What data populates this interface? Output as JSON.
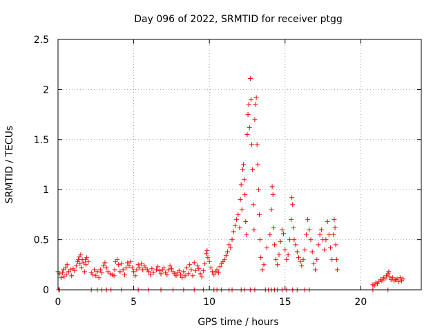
{
  "chart_data": {
    "type": "scatter",
    "title": "Day 096 of 2022, SRMTID for receiver ptgg",
    "xlabel": "GPS time / hours",
    "ylabel": "SRMTID / TECUs",
    "xlim": [
      0,
      24
    ],
    "ylim": [
      0,
      2.5
    ],
    "xticks": [
      0,
      5,
      10,
      15,
      20
    ],
    "yticks": [
      0,
      0.5,
      1,
      1.5,
      2,
      2.5
    ],
    "ytick_labels": [
      "0",
      "0.5",
      "1",
      "1.5",
      "2",
      "2.5"
    ],
    "grid": true,
    "marker": "+",
    "series": [
      {
        "name": "SRMTID",
        "color": "#ff0000",
        "points": [
          [
            0.0,
            0.18
          ],
          [
            0.1,
            0.16
          ],
          [
            0.2,
            0.12
          ],
          [
            0.3,
            0.17
          ],
          [
            0.35,
            0.2
          ],
          [
            0.4,
            0.13
          ],
          [
            0.5,
            0.22
          ],
          [
            0.55,
            0.15
          ],
          [
            0.6,
            0.25
          ],
          [
            0.7,
            0.18
          ],
          [
            0.8,
            0.2
          ],
          [
            0.9,
            0.14
          ],
          [
            1.0,
            0.21
          ],
          [
            1.1,
            0.19
          ],
          [
            1.2,
            0.24
          ],
          [
            1.3,
            0.28
          ],
          [
            1.35,
            0.3
          ],
          [
            1.4,
            0.33
          ],
          [
            1.45,
            0.26
          ],
          [
            1.5,
            0.35
          ],
          [
            1.55,
            0.22
          ],
          [
            1.6,
            0.3
          ],
          [
            1.7,
            0.27
          ],
          [
            1.75,
            0.18
          ],
          [
            1.8,
            0.3
          ],
          [
            1.85,
            0.25
          ],
          [
            1.9,
            0.32
          ],
          [
            2.0,
            0.28
          ],
          [
            2.2,
            0.17
          ],
          [
            2.3,
            0.15
          ],
          [
            2.4,
            0.2
          ],
          [
            2.5,
            0.14
          ],
          [
            2.6,
            0.18
          ],
          [
            2.7,
            0.12
          ],
          [
            2.8,
            0.2
          ],
          [
            2.9,
            0.17
          ],
          [
            3.0,
            0.24
          ],
          [
            3.1,
            0.27
          ],
          [
            3.2,
            0.22
          ],
          [
            3.3,
            0.18
          ],
          [
            3.45,
            0.16
          ],
          [
            3.6,
            0.15
          ],
          [
            3.7,
            0.14
          ],
          [
            3.75,
            0.2
          ],
          [
            3.8,
            0.28
          ],
          [
            3.9,
            0.3
          ],
          [
            4.0,
            0.25
          ],
          [
            4.1,
            0.18
          ],
          [
            4.2,
            0.26
          ],
          [
            4.3,
            0.2
          ],
          [
            4.4,
            0.15
          ],
          [
            4.5,
            0.22
          ],
          [
            4.6,
            0.27
          ],
          [
            4.7,
            0.24
          ],
          [
            4.8,
            0.28
          ],
          [
            4.9,
            0.22
          ],
          [
            5.0,
            0.18
          ],
          [
            5.1,
            0.14
          ],
          [
            5.2,
            0.2
          ],
          [
            5.3,
            0.25
          ],
          [
            5.4,
            0.22
          ],
          [
            5.5,
            0.26
          ],
          [
            5.6,
            0.2
          ],
          [
            5.7,
            0.24
          ],
          [
            5.8,
            0.22
          ],
          [
            5.9,
            0.2
          ],
          [
            6.0,
            0.18
          ],
          [
            6.1,
            0.15
          ],
          [
            6.2,
            0.21
          ],
          [
            6.3,
            0.17
          ],
          [
            6.5,
            0.2
          ],
          [
            6.6,
            0.23
          ],
          [
            6.7,
            0.19
          ],
          [
            6.8,
            0.16
          ],
          [
            6.9,
            0.2
          ],
          [
            7.0,
            0.22
          ],
          [
            7.1,
            0.17
          ],
          [
            7.2,
            0.15
          ],
          [
            7.3,
            0.2
          ],
          [
            7.4,
            0.24
          ],
          [
            7.5,
            0.21
          ],
          [
            7.6,
            0.18
          ],
          [
            7.7,
            0.16
          ],
          [
            7.8,
            0.14
          ],
          [
            7.9,
            0.17
          ],
          [
            8.0,
            0.19
          ],
          [
            8.1,
            0.15
          ],
          [
            8.2,
            0.12
          ],
          [
            8.3,
            0.18
          ],
          [
            8.4,
            0.14
          ],
          [
            8.5,
            0.22
          ],
          [
            8.6,
            0.16
          ],
          [
            8.7,
            0.25
          ],
          [
            8.8,
            0.2
          ],
          [
            8.9,
            0.14
          ],
          [
            9.0,
            0.27
          ],
          [
            9.1,
            0.19
          ],
          [
            9.2,
            0.24
          ],
          [
            9.3,
            0.21
          ],
          [
            9.4,
            0.16
          ],
          [
            9.5,
            0.13
          ],
          [
            9.6,
            0.19
          ],
          [
            9.7,
            0.26
          ],
          [
            9.8,
            0.36
          ],
          [
            9.85,
            0.39
          ],
          [
            9.9,
            0.32
          ],
          [
            10.0,
            0.28
          ],
          [
            10.1,
            0.22
          ],
          [
            10.2,
            0.18
          ],
          [
            10.3,
            0.15
          ],
          [
            10.4,
            0.18
          ],
          [
            10.5,
            0.2
          ],
          [
            10.6,
            0.17
          ],
          [
            10.7,
            0.23
          ],
          [
            10.8,
            0.26
          ],
          [
            10.9,
            0.28
          ],
          [
            11.0,
            0.3
          ],
          [
            11.1,
            0.34
          ],
          [
            11.2,
            0.38
          ],
          [
            11.3,
            0.45
          ],
          [
            11.4,
            0.42
          ],
          [
            11.5,
            0.5
          ],
          [
            11.6,
            0.58
          ],
          [
            11.7,
            0.64
          ],
          [
            11.8,
            0.7
          ],
          [
            11.9,
            0.75
          ],
          [
            12.0,
            0.62
          ],
          [
            12.05,
            0.9
          ],
          [
            12.1,
            1.05
          ],
          [
            12.15,
            0.8
          ],
          [
            12.2,
            1.2
          ],
          [
            12.25,
            1.25
          ],
          [
            12.3,
            1.1
          ],
          [
            12.35,
            0.95
          ],
          [
            12.4,
            0.68
          ],
          [
            12.45,
            0.55
          ],
          [
            12.5,
            1.55
          ],
          [
            12.55,
            1.75
          ],
          [
            12.6,
            1.85
          ],
          [
            12.65,
            1.62
          ],
          [
            12.7,
            2.11
          ],
          [
            12.75,
            1.9
          ],
          [
            12.8,
            1.45
          ],
          [
            12.85,
            1.2
          ],
          [
            12.9,
            0.85
          ],
          [
            12.95,
            0.6
          ],
          [
            13.0,
            1.7
          ],
          [
            13.05,
            1.85
          ],
          [
            13.1,
            1.92
          ],
          [
            13.15,
            1.45
          ],
          [
            13.2,
            1.25
          ],
          [
            13.25,
            1.0
          ],
          [
            13.3,
            0.75
          ],
          [
            13.35,
            0.5
          ],
          [
            13.4,
            0.32
          ],
          [
            13.5,
            0.2
          ],
          [
            13.6,
            0.25
          ],
          [
            13.8,
            0.42
          ],
          [
            14.0,
            0.55
          ],
          [
            14.1,
            0.8
          ],
          [
            14.15,
            1.03
          ],
          [
            14.2,
            0.95
          ],
          [
            14.25,
            0.62
          ],
          [
            14.3,
            0.45
          ],
          [
            14.4,
            0.3
          ],
          [
            14.5,
            0.25
          ],
          [
            14.6,
            0.35
          ],
          [
            14.7,
            0.48
          ],
          [
            14.8,
            0.6
          ],
          [
            14.9,
            0.56
          ],
          [
            15.0,
            0.4
          ],
          [
            15.1,
            0.3
          ],
          [
            15.2,
            0.35
          ],
          [
            15.3,
            0.5
          ],
          [
            15.4,
            0.7
          ],
          [
            15.45,
            0.92
          ],
          [
            15.5,
            0.85
          ],
          [
            15.55,
            0.62
          ],
          [
            15.6,
            0.5
          ],
          [
            15.7,
            0.45
          ],
          [
            15.8,
            0.38
          ],
          [
            15.9,
            0.32
          ],
          [
            16.0,
            0.28
          ],
          [
            16.1,
            0.24
          ],
          [
            16.2,
            0.3
          ],
          [
            16.3,
            0.4
          ],
          [
            16.4,
            0.55
          ],
          [
            16.5,
            0.7
          ],
          [
            16.6,
            0.6
          ],
          [
            16.7,
            0.5
          ],
          [
            16.8,
            0.38
          ],
          [
            16.9,
            0.26
          ],
          [
            17.0,
            0.2
          ],
          [
            17.1,
            0.3
          ],
          [
            17.2,
            0.45
          ],
          [
            17.3,
            0.55
          ],
          [
            17.4,
            0.6
          ],
          [
            17.5,
            0.5
          ],
          [
            17.6,
            0.4
          ],
          [
            17.7,
            0.5
          ],
          [
            17.8,
            0.68
          ],
          [
            17.9,
            0.55
          ],
          [
            18.0,
            0.42
          ],
          [
            18.1,
            0.3
          ],
          [
            18.2,
            0.55
          ],
          [
            18.25,
            0.7
          ],
          [
            18.3,
            0.62
          ],
          [
            18.35,
            0.45
          ],
          [
            18.4,
            0.3
          ],
          [
            18.45,
            0.2
          ],
          [
            20.8,
            0.05
          ],
          [
            20.9,
            0.04
          ],
          [
            21.0,
            0.07
          ],
          [
            21.1,
            0.06
          ],
          [
            21.2,
            0.08
          ],
          [
            21.3,
            0.1
          ],
          [
            21.4,
            0.09
          ],
          [
            21.5,
            0.12
          ],
          [
            21.6,
            0.11
          ],
          [
            21.7,
            0.14
          ],
          [
            21.8,
            0.16
          ],
          [
            21.85,
            0.18
          ],
          [
            21.9,
            0.13
          ],
          [
            22.0,
            0.1
          ],
          [
            22.1,
            0.12
          ],
          [
            22.2,
            0.09
          ],
          [
            22.3,
            0.1
          ],
          [
            22.4,
            0.11
          ],
          [
            22.5,
            0.08
          ],
          [
            22.6,
            0.12
          ],
          [
            22.7,
            0.09
          ],
          [
            22.8,
            0.11
          ]
        ],
        "zero_points": [
          0.05,
          0.1,
          2.2,
          2.6,
          2.9,
          3.2,
          3.5,
          4.2,
          5.3,
          6.0,
          6.8,
          7.6,
          8.3,
          9.0,
          9.6,
          10.3,
          10.5,
          10.8,
          11.3,
          11.5,
          12.1,
          12.3,
          12.7,
          13.0,
          13.7,
          13.9,
          14.1,
          14.3,
          14.5,
          14.8,
          15.1,
          15.5,
          15.8,
          16.3,
          16.6,
          20.8,
          21.8
        ]
      }
    ]
  }
}
